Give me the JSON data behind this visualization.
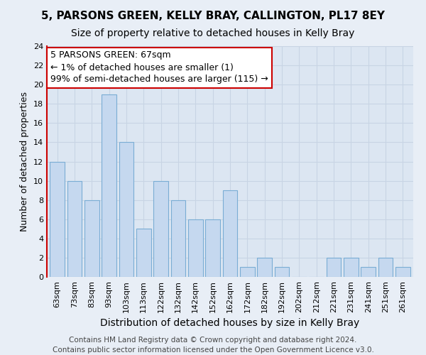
{
  "title": "5, PARSONS GREEN, KELLY BRAY, CALLINGTON, PL17 8EY",
  "subtitle": "Size of property relative to detached houses in Kelly Bray",
  "xlabel": "Distribution of detached houses by size in Kelly Bray",
  "ylabel": "Number of detached properties",
  "bar_color": "#c5d8ef",
  "bar_edge_color": "#7aadd4",
  "annotation_box_color": "#ffffff",
  "annotation_box_edge_color": "#cc0000",
  "annotation_line1": "5 PARSONS GREEN: 67sqm",
  "annotation_line2": "← 1% of detached houses are smaller (1)",
  "annotation_line3": "99% of semi-detached houses are larger (115) →",
  "bins": [
    "63sqm",
    "73sqm",
    "83sqm",
    "93sqm",
    "103sqm",
    "113sqm",
    "122sqm",
    "132sqm",
    "142sqm",
    "152sqm",
    "162sqm",
    "172sqm",
    "182sqm",
    "192sqm",
    "202sqm",
    "212sqm",
    "221sqm",
    "231sqm",
    "241sqm",
    "251sqm",
    "261sqm"
  ],
  "counts": [
    12,
    10,
    8,
    19,
    14,
    5,
    10,
    8,
    6,
    6,
    9,
    1,
    2,
    1,
    0,
    0,
    2,
    2,
    1,
    2,
    1
  ],
  "red_spine_color": "#cc0000",
  "ylim": [
    0,
    24
  ],
  "yticks": [
    0,
    2,
    4,
    6,
    8,
    10,
    12,
    14,
    16,
    18,
    20,
    22,
    24
  ],
  "footer_line1": "Contains HM Land Registry data © Crown copyright and database right 2024.",
  "footer_line2": "Contains public sector information licensed under the Open Government Licence v3.0.",
  "background_color": "#e8eef6",
  "plot_background_color": "#dce6f2",
  "grid_color": "#c8d4e4",
  "title_fontsize": 11,
  "subtitle_fontsize": 10,
  "xlabel_fontsize": 10,
  "ylabel_fontsize": 9,
  "tick_fontsize": 8,
  "annotation_fontsize": 9,
  "footer_fontsize": 7.5
}
